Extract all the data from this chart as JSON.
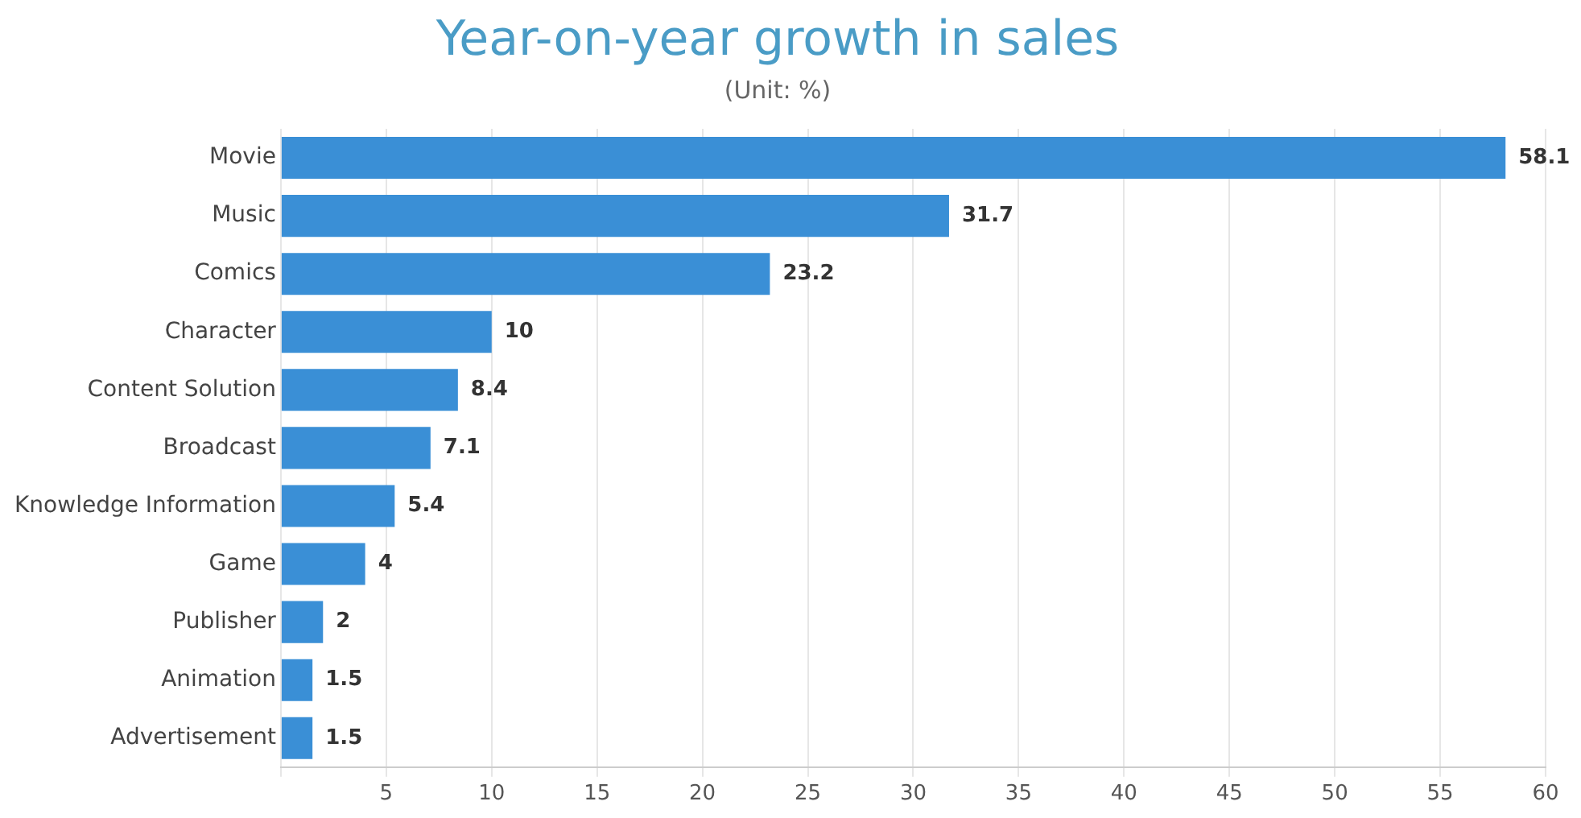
{
  "chart_data": {
    "type": "bar",
    "orientation": "horizontal",
    "title": "Year-on-year growth in sales",
    "subtitle": "(Unit: %)",
    "categories": [
      "Movie",
      "Music",
      "Comics",
      "Character",
      "Content Solution",
      "Broadcast",
      "Knowledge Information",
      "Game",
      "Publisher",
      "Animation",
      "Advertisement"
    ],
    "values": [
      58.1,
      31.7,
      23.2,
      10,
      8.4,
      7.1,
      5.4,
      4,
      2,
      1.5,
      1.5
    ],
    "color": "#3a8fd6",
    "xlim": [
      0,
      60
    ],
    "xticks": [
      {
        "value": 0,
        "label": null
      },
      5,
      10,
      15,
      20,
      25,
      30,
      35,
      40,
      45,
      50,
      55,
      60
    ],
    "grid": "x",
    "data_labels": true,
    "legend": false
  }
}
